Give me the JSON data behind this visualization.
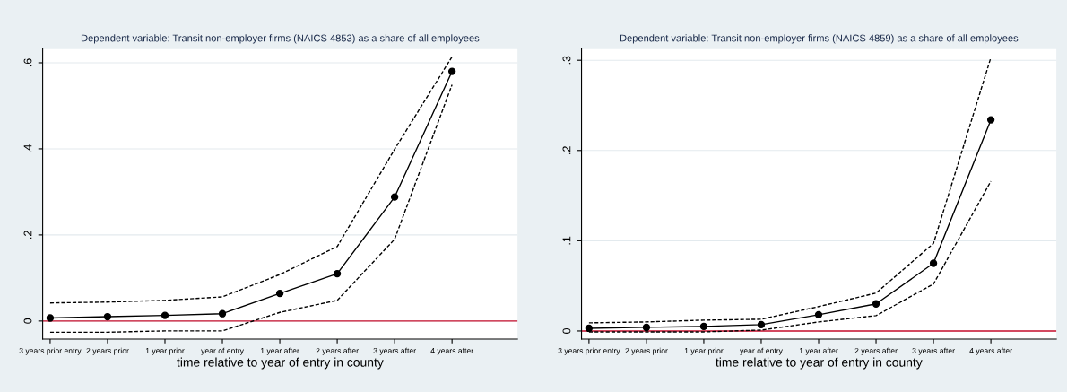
{
  "chart_data": [
    {
      "type": "line",
      "title": "Dependent variable: Transit non-employer firms (NAICS 4853) as a share of all employees",
      "xlabel": "time relative to year of entry in county",
      "categories": [
        "3 years prior entry",
        "2 years prior",
        "1 year prior",
        "year of entry",
        "1 year after",
        "2 years after",
        "3 years after",
        "4 years after"
      ],
      "series": [
        {
          "color": "#000000",
          "marker": "circle",
          "line_style": "solid",
          "values": [
            0.007,
            0.01,
            0.013,
            0.017,
            0.064,
            0.11,
            0.288,
            0.58
          ]
        },
        {
          "color": "#000000",
          "marker": "none",
          "line_style": "dashed",
          "values": [
            0.042,
            0.044,
            0.048,
            0.056,
            0.108,
            0.173,
            0.399,
            0.614
          ]
        },
        {
          "color": "#000000",
          "marker": "none",
          "line_style": "dashed",
          "values": [
            -0.026,
            -0.026,
            -0.023,
            -0.023,
            0.02,
            0.048,
            0.19,
            0.549
          ]
        }
      ],
      "ylim": [
        -0.042,
        0.632
      ],
      "yticks": [
        {
          "value": 0,
          "label": "0"
        },
        {
          "value": 0.2,
          "label": ".2"
        },
        {
          "value": 0.4,
          "label": ".4"
        },
        {
          "value": 0.6,
          "label": ".6"
        }
      ],
      "ref_lines": [
        {
          "axis": "y",
          "value": 0,
          "color": "#c8102e"
        }
      ],
      "grid": "y",
      "legend": false
    },
    {
      "type": "line",
      "title": "Dependent variable: Transit non-employer firms (NAICS 4859) as a share of all employees",
      "xlabel": "time relative to year of entry in county",
      "categories": [
        "3 years prior entry",
        "2 years prior",
        "1 year prior",
        "year of entry",
        "1 year after",
        "2 years after",
        "3 years after",
        "4 years after"
      ],
      "series": [
        {
          "color": "#000000",
          "marker": "circle",
          "line_style": "solid",
          "values": [
            0.003,
            0.004,
            0.005,
            0.007,
            0.018,
            0.03,
            0.075,
            0.234
          ]
        },
        {
          "color": "#000000",
          "marker": "none",
          "line_style": "dashed",
          "values": [
            0.009,
            0.01,
            0.012,
            0.013,
            0.027,
            0.042,
            0.097,
            0.303
          ]
        },
        {
          "color": "#000000",
          "marker": "none",
          "line_style": "dashed",
          "values": [
            -0.001,
            -0.001,
            -0.001,
            0.001,
            0.01,
            0.017,
            0.052,
            0.166
          ]
        }
      ],
      "ylim": [
        -0.009,
        0.3125
      ],
      "yticks": [
        {
          "value": 0,
          "label": "0"
        },
        {
          "value": 0.1,
          "label": ".1"
        },
        {
          "value": 0.2,
          "label": ".2"
        },
        {
          "value": 0.3,
          "label": ".3"
        }
      ],
      "ref_lines": [
        {
          "axis": "y",
          "value": 0,
          "color": "#c8102e"
        }
      ],
      "grid": "y",
      "legend": false
    }
  ]
}
